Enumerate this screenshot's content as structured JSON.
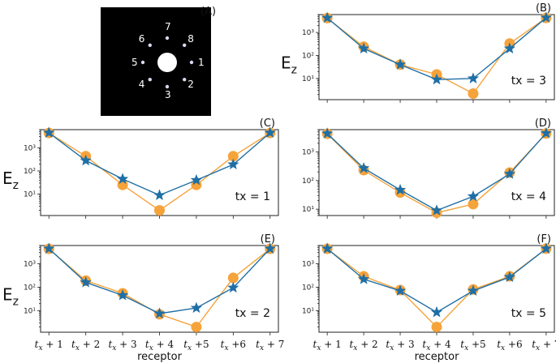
{
  "colors": {
    "measured": "#f5a33a",
    "model": "#1f6fa6",
    "panelA_bg": "#000000",
    "dot": "#d8d8f0"
  },
  "panel_a": {
    "letter": "(A)",
    "labels": [
      "1",
      "2",
      "3",
      "4",
      "5",
      "6",
      "7",
      "8"
    ]
  },
  "chart_data": [
    {
      "panel": "(B)",
      "type": "line",
      "yscale": "log",
      "ylim": [
        1.2,
        6000
      ],
      "ylabel": "E",
      "ylabel_sub": "z",
      "annotation": "tx = 3",
      "xlabel": "",
      "x": [
        1,
        2,
        3,
        4,
        5,
        6,
        7
      ],
      "series": [
        {
          "marker": "circle",
          "values": [
            4200,
            240,
            40,
            15,
            2.2,
            330,
            4300
          ]
        },
        {
          "marker": "star",
          "values": [
            4300,
            200,
            40,
            9,
            10,
            200,
            4400
          ]
        }
      ]
    },
    {
      "panel": "(C)",
      "type": "line",
      "yscale": "log",
      "ylim": [
        1.2,
        6000
      ],
      "ylabel": "E",
      "ylabel_sub": "z",
      "annotation": "tx = 1",
      "xlabel": "",
      "x": [
        1,
        2,
        3,
        4,
        5,
        6,
        7
      ],
      "series": [
        {
          "marker": "circle",
          "values": [
            4300,
            430,
            25,
            2.0,
            25,
            430,
            4300
          ]
        },
        {
          "marker": "star",
          "values": [
            4400,
            280,
            45,
            9,
            40,
            190,
            4400
          ]
        }
      ]
    },
    {
      "panel": "(D)",
      "type": "line",
      "yscale": "log",
      "ylim": [
        6,
        6000
      ],
      "ylabel": "",
      "ylabel_sub": "",
      "annotation": "tx = 4",
      "xlabel": "",
      "x": [
        1,
        2,
        3,
        4,
        5,
        6,
        7
      ],
      "series": [
        {
          "marker": "circle",
          "values": [
            4300,
            230,
            38,
            7.5,
            15,
            190,
            4400
          ]
        },
        {
          "marker": "star",
          "values": [
            4400,
            270,
            47,
            9,
            28,
            170,
            4500
          ]
        }
      ]
    },
    {
      "panel": "(E)",
      "type": "line",
      "yscale": "log",
      "ylim": [
        1.2,
        6000
      ],
      "ylabel": "E",
      "ylabel_sub": "z",
      "annotation": "tx = 2",
      "xlabel": "receptor",
      "x": [
        1,
        2,
        3,
        4,
        5,
        6,
        7
      ],
      "series": [
        {
          "marker": "circle",
          "values": [
            4300,
            190,
            55,
            7,
            2.0,
            250,
            4300
          ]
        },
        {
          "marker": "star",
          "values": [
            4400,
            160,
            45,
            7.5,
            13,
            95,
            4400
          ]
        }
      ]
    },
    {
      "panel": "(F)",
      "type": "line",
      "yscale": "log",
      "ylim": [
        1.2,
        6000
      ],
      "ylabel": "",
      "ylabel_sub": "",
      "annotation": "tx = 5",
      "xlabel": "receptor",
      "x": [
        1,
        2,
        3,
        4,
        5,
        6,
        7
      ],
      "series": [
        {
          "marker": "circle",
          "values": [
            4300,
            290,
            75,
            2.0,
            80,
            290,
            4400
          ]
        },
        {
          "marker": "star",
          "values": [
            4400,
            220,
            70,
            8.5,
            70,
            270,
            4400
          ]
        }
      ]
    }
  ],
  "tick_labels": {
    "y": [
      "10¹",
      "10²",
      "10³"
    ],
    "x_prefix": "t",
    "x_sub": "x",
    "x": [
      "+ 1",
      "+ 2",
      "+ 3",
      "+ 4",
      "+5",
      "+6",
      "+ 7"
    ]
  }
}
